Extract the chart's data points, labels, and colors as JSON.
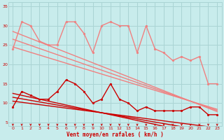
{
  "bg_color": "#c8ecec",
  "grid_color": "#aad4d4",
  "xlabel": "Vent moyen/en rafales ( km/h )",
  "xlim": [
    -0.5,
    23.5
  ],
  "ylim": [
    4,
    36
  ],
  "yticks": [
    5,
    10,
    15,
    20,
    25,
    30,
    35
  ],
  "xticks": [
    0,
    1,
    2,
    3,
    4,
    5,
    6,
    7,
    8,
    9,
    10,
    11,
    12,
    13,
    14,
    15,
    16,
    17,
    18,
    19,
    20,
    21,
    22,
    23
  ],
  "series": [
    {
      "y": [
        24,
        31,
        30,
        26,
        25,
        25,
        31,
        31,
        28,
        23,
        30,
        31,
        30,
        30,
        23,
        30,
        24,
        23,
        21,
        22,
        21,
        22,
        15,
        15
      ],
      "color": "#f08080",
      "lw": 1.0,
      "marker": "o",
      "ms": 2.0,
      "zorder": 4
    },
    {
      "y": [
        24.5,
        23.8,
        23.1,
        22.4,
        21.7,
        21.0,
        20.3,
        19.6,
        18.9,
        18.2,
        17.5,
        16.8,
        16.1,
        15.4,
        14.7,
        14.0,
        13.3,
        12.6,
        11.9,
        11.2,
        10.5,
        9.8,
        9.1,
        8.4
      ],
      "color": "#f08080",
      "lw": 1.0,
      "marker": null,
      "ms": 0,
      "zorder": 3
    },
    {
      "y": [
        26.5,
        25.7,
        24.9,
        24.1,
        23.3,
        22.5,
        21.7,
        20.9,
        20.1,
        19.3,
        18.5,
        17.7,
        16.9,
        16.1,
        15.3,
        14.5,
        13.7,
        12.9,
        12.1,
        11.3,
        10.5,
        9.7,
        8.9,
        8.1
      ],
      "color": "#f08080",
      "lw": 1.0,
      "marker": null,
      "ms": 0,
      "zorder": 3
    },
    {
      "y": [
        28.5,
        27.6,
        26.7,
        25.8,
        24.9,
        24.0,
        23.1,
        22.2,
        21.3,
        20.4,
        19.5,
        18.6,
        17.7,
        16.8,
        15.9,
        15.0,
        14.1,
        13.2,
        12.3,
        11.4,
        10.5,
        9.6,
        8.7,
        7.8
      ],
      "color": "#f08080",
      "lw": 1.0,
      "marker": null,
      "ms": 0,
      "zorder": 3
    },
    {
      "y": [
        9,
        13,
        12,
        11,
        11,
        13,
        16,
        15,
        13,
        10,
        11,
        15,
        11,
        10,
        8,
        9,
        8,
        8,
        8,
        8,
        9,
        9,
        7,
        7
      ],
      "color": "#cc0000",
      "lw": 1.0,
      "marker": "o",
      "ms": 2.0,
      "zorder": 4
    },
    {
      "y": [
        10.5,
        10.2,
        9.9,
        9.6,
        9.3,
        9.0,
        8.7,
        8.4,
        8.1,
        7.8,
        7.5,
        7.2,
        6.9,
        6.6,
        6.3,
        6.0,
        5.7,
        5.4,
        5.1,
        4.8,
        4.5,
        4.2,
        3.9,
        3.6
      ],
      "color": "#cc0000",
      "lw": 1.0,
      "marker": null,
      "ms": 0,
      "zorder": 3
    },
    {
      "y": [
        11.5,
        11.1,
        10.7,
        10.3,
        9.9,
        9.5,
        9.1,
        8.7,
        8.3,
        7.9,
        7.5,
        7.1,
        6.7,
        6.3,
        5.9,
        5.5,
        5.1,
        4.7,
        4.3,
        3.9,
        3.5,
        3.1,
        2.7,
        2.3
      ],
      "color": "#cc0000",
      "lw": 1.0,
      "marker": null,
      "ms": 0,
      "zorder": 3
    },
    {
      "y": [
        12.5,
        12.0,
        11.5,
        11.0,
        10.5,
        10.0,
        9.5,
        9.0,
        8.5,
        8.0,
        7.5,
        7.0,
        6.5,
        6.0,
        5.5,
        5.0,
        4.5,
        4.0,
        3.5,
        3.0,
        2.5,
        2.0,
        1.5,
        1.0
      ],
      "color": "#cc0000",
      "lw": 1.0,
      "marker": null,
      "ms": 0,
      "zorder": 3
    }
  ],
  "tick_label_color": "#cc0000",
  "xlabel_color": "#cc0000",
  "arrow_color": "#cc0000"
}
